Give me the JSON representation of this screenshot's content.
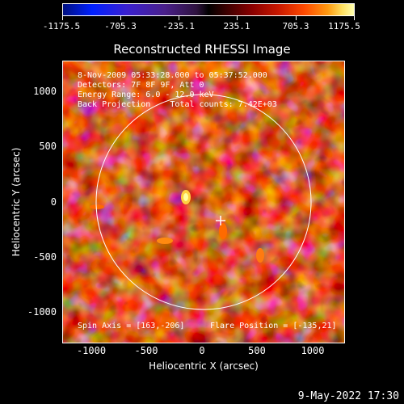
{
  "colorbar": {
    "ticks": [
      "-1175.5",
      "-705.3",
      "-235.1",
      "235.1",
      "705.3",
      "1175.5"
    ],
    "colors": [
      "#001080",
      "#0020ff",
      "#4a208a",
      "#000000",
      "#8a0000",
      "#ff4a00",
      "#ffe060"
    ]
  },
  "title": "Reconstructed RHESSI Image",
  "info": {
    "time_range": "8-Nov-2009 05:33:28.000 to 05:37:52.000",
    "detectors": "Detectors: 7F 8F 9F, Att 0",
    "energy_range": "Energy Range: 6.0 - 12.0 keV",
    "method_counts": "Back Projection    Total counts: 7.42E+03"
  },
  "bottom_notes": {
    "spin_axis": "Spin Axis = [163,-206]",
    "flare_position": "Flare Position = [-135,21]"
  },
  "axes": {
    "xlabel": "Heliocentric X (arcsec)",
    "ylabel": "Heliocentric Y (arcsec)",
    "xticks": [
      "-1000",
      "-500",
      "0",
      "500",
      "1000"
    ],
    "yticks": [
      "1000",
      "500",
      "0",
      "-500",
      "-1000"
    ]
  },
  "timestamp": "9-May-2022 17:30"
}
